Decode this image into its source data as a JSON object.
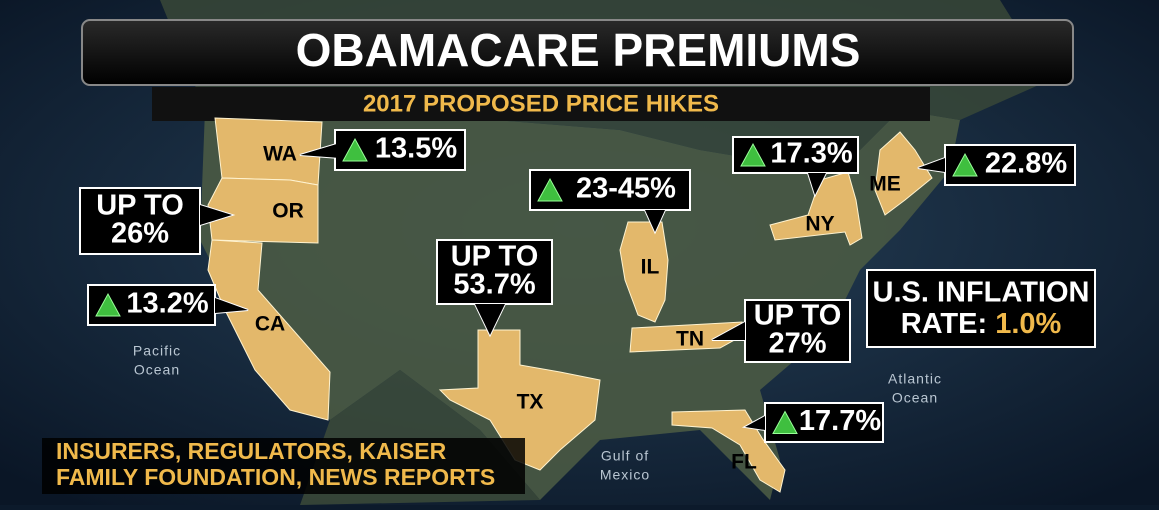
{
  "header": {
    "title": "OBAMACARE PREMIUMS",
    "subtitle": "2017 PROPOSED PRICE HIKES"
  },
  "states": [
    {
      "label": "WA",
      "callout": [
        "13.5%"
      ],
      "arrow": true
    },
    {
      "label": "OR",
      "callout": [
        "UP TO",
        "26%"
      ],
      "arrow": false
    },
    {
      "label": "CA",
      "callout": [
        "13.2%"
      ],
      "arrow": true
    },
    {
      "label": "TX",
      "callout": [
        "UP TO",
        "53.7%"
      ],
      "arrow": false
    },
    {
      "label": "IL",
      "callout": [
        "23-45%"
      ],
      "arrow": true
    },
    {
      "label": "TN",
      "callout": [
        "UP TO",
        "27%"
      ],
      "arrow": false
    },
    {
      "label": "NY",
      "callout": [
        "17.3%"
      ],
      "arrow": true
    },
    {
      "label": "ME",
      "callout": [
        "22.8%"
      ],
      "arrow": true
    },
    {
      "label": "FL",
      "callout": [
        "17.7%"
      ],
      "arrow": true
    }
  ],
  "oceans": [
    [
      "Pacific",
      "Ocean"
    ],
    [
      "Atlantic",
      "Ocean"
    ],
    [
      "Gulf of",
      "Mexico"
    ]
  ],
  "inflation": {
    "lines": [
      "U.S. INFLATION",
      "RATE:"
    ],
    "value": "1.0%"
  },
  "source": [
    "INSURERS, REGULATORS, KAISER",
    "FAMILY FOUNDATION, NEWS REPORTS"
  ]
}
